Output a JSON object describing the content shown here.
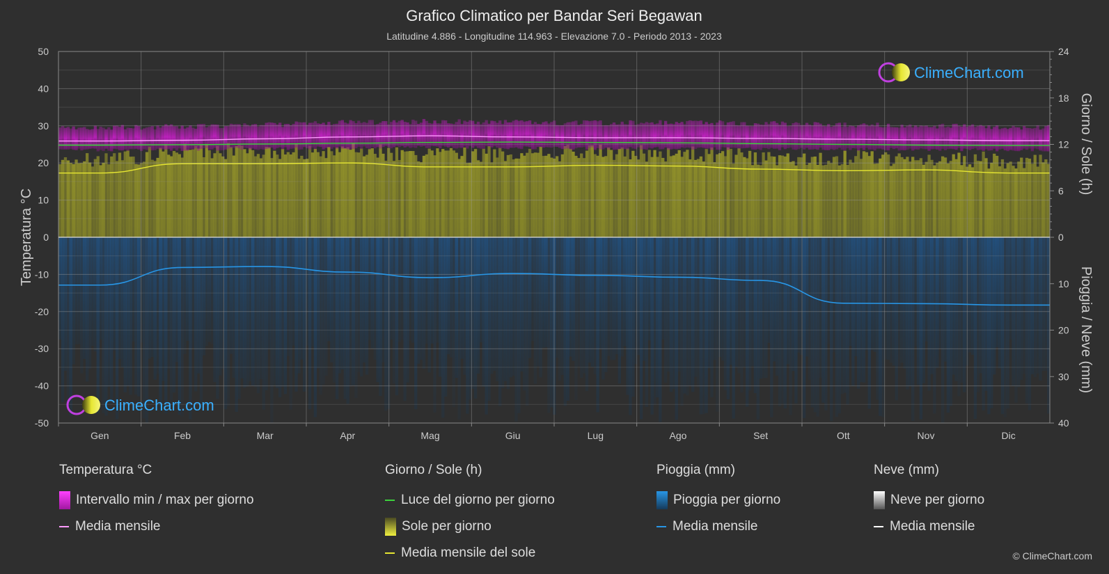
{
  "header": {
    "title": "Grafico Climatico per Bandar Seri Begawan",
    "subtitle": "Latitudine 4.886 - Longitudine 114.963 - Elevazione 7.0 - Periodo 2013 - 2023"
  },
  "logo": {
    "text": "ClimeChart.com"
  },
  "copyright": "© ClimeChart.com",
  "legend": {
    "temperature": {
      "heading": "Temperatura °C",
      "range": "Intervallo min / max per giorno",
      "mean": "Media mensile"
    },
    "sun": {
      "heading": "Giorno / Sole (h)",
      "daylight": "Luce del giorno per giorno",
      "sun": "Sole per giorno",
      "mean": "Media mensile del sole"
    },
    "rain": {
      "heading": "Pioggia (mm)",
      "rain": "Pioggia per giorno",
      "mean": "Media mensile"
    },
    "snow": {
      "heading": "Neve (mm)",
      "snow": "Neve per giorno",
      "mean": "Media mensile"
    }
  },
  "colors": {
    "temp_range": "#d21ed2",
    "temp_mean": "#ff9bff",
    "daylight": "#3cd23c",
    "sun_bar": "#b4b42d",
    "sun_mean": "#e6e632",
    "rain_bar": "#1e5a96",
    "rain_mean": "#2896e6",
    "snow_mean": "#ffffff"
  },
  "chart_data": {
    "type": "area",
    "categories": [
      "Gen",
      "Feb",
      "Mar",
      "Apr",
      "Mag",
      "Giu",
      "Lug",
      "Ago",
      "Set",
      "Ott",
      "Nov",
      "Dic"
    ],
    "axes": {
      "left": {
        "label": "Temperatura °C",
        "ylim": [
          -50,
          50
        ],
        "ticks": [
          "50",
          "40",
          "30",
          "20",
          "10",
          "0",
          "-10",
          "-20",
          "-30",
          "-40",
          "-50"
        ]
      },
      "right_top": {
        "label": "Giorno / Sole (h)",
        "ylim": [
          0,
          24
        ],
        "ticks": [
          "24",
          "18",
          "12",
          "6",
          "0"
        ]
      },
      "right_bottom": {
        "label": "Pioggia / Neve (mm)",
        "ylim": [
          0,
          40
        ],
        "ticks": [
          "10",
          "20",
          "30",
          "40"
        ]
      }
    },
    "grid": true,
    "series": [
      {
        "name": "Intervallo min / max per giorno",
        "kind": "band",
        "min": [
          23.5,
          23.6,
          23.8,
          24.1,
          24.3,
          24.1,
          23.9,
          23.9,
          23.8,
          23.7,
          23.6,
          23.5
        ],
        "max": [
          29.5,
          29.8,
          30.3,
          30.9,
          31.2,
          31.0,
          30.8,
          30.9,
          30.6,
          30.3,
          30.0,
          29.6
        ]
      },
      {
        "name": "Media mensile",
        "kind": "temp_mean",
        "values": [
          25.9,
          26.1,
          26.5,
          27.0,
          27.3,
          27.0,
          26.8,
          26.8,
          26.6,
          26.4,
          26.2,
          26.0
        ]
      },
      {
        "name": "Luce del giorno per giorno",
        "kind": "daylight",
        "values": [
          11.9,
          11.95,
          12.05,
          12.15,
          12.25,
          12.3,
          12.25,
          12.2,
          12.1,
          12.0,
          11.9,
          11.85
        ]
      },
      {
        "name": "Media mensile del sole",
        "kind": "sun_mean",
        "values": [
          8.3,
          9.5,
          9.5,
          9.6,
          9.1,
          9.1,
          9.3,
          9.2,
          8.8,
          8.6,
          8.7,
          8.3
        ]
      },
      {
        "name": "Media mensile",
        "kind": "rain_mean",
        "values": [
          10.3,
          6.5,
          6.3,
          7.5,
          8.7,
          7.8,
          8.2,
          8.6,
          9.3,
          14.2,
          14.3,
          14.6
        ]
      }
    ]
  }
}
